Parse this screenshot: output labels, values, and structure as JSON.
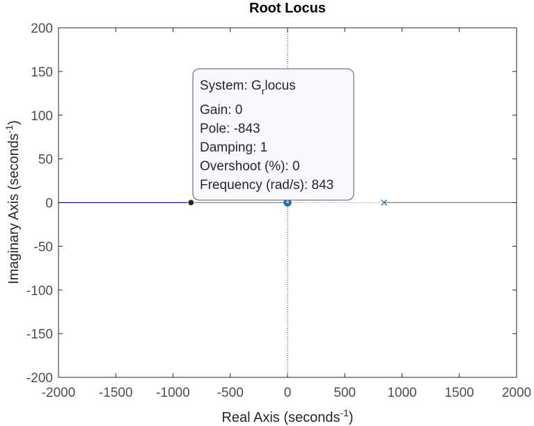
{
  "chart_data": {
    "type": "root-locus",
    "title": "Root Locus",
    "xlabel": {
      "text": "Real Axis (seconds",
      "sup": "-1",
      "close": ")"
    },
    "ylabel": {
      "text": "Imaginary Axis (seconds",
      "sup": "-1",
      "close": ")"
    },
    "xlim": [
      -2000,
      2000
    ],
    "ylim": [
      -200,
      200
    ],
    "xticks": [
      -2000,
      -1500,
      -1000,
      -500,
      0,
      500,
      1000,
      1500,
      2000
    ],
    "yticks": [
      -200,
      -150,
      -100,
      -50,
      0,
      50,
      100,
      150,
      200
    ],
    "grid": false,
    "series": [
      {
        "color": "#0000ff",
        "segments": [
          {
            "x": [
              -2000,
              -843
            ],
            "y": [
              0,
              0
            ]
          }
        ]
      },
      {
        "color": "#808080",
        "segments": [
          {
            "x": [
              -843,
              0
            ],
            "y": [
              0,
              0
            ]
          },
          {
            "x": [
              843,
              2000
            ],
            "y": [
              0,
              0
            ]
          }
        ]
      }
    ],
    "poles": [
      {
        "x": 843,
        "y": 0,
        "color": "#1f77b4"
      }
    ],
    "zeros": [
      {
        "x": 0,
        "y": 0,
        "color": "#1f77b4"
      }
    ],
    "selected_point": {
      "x": -843,
      "y": 0
    },
    "datatip": {
      "system_prefix": "System: G",
      "system_sub": "r",
      "system_suffix": "locus",
      "lines": [
        "Gain: 0",
        "Pole: -843",
        "Damping: 1",
        "Overshoot (%): 0",
        "Frequency (rad/s): 843"
      ]
    }
  }
}
